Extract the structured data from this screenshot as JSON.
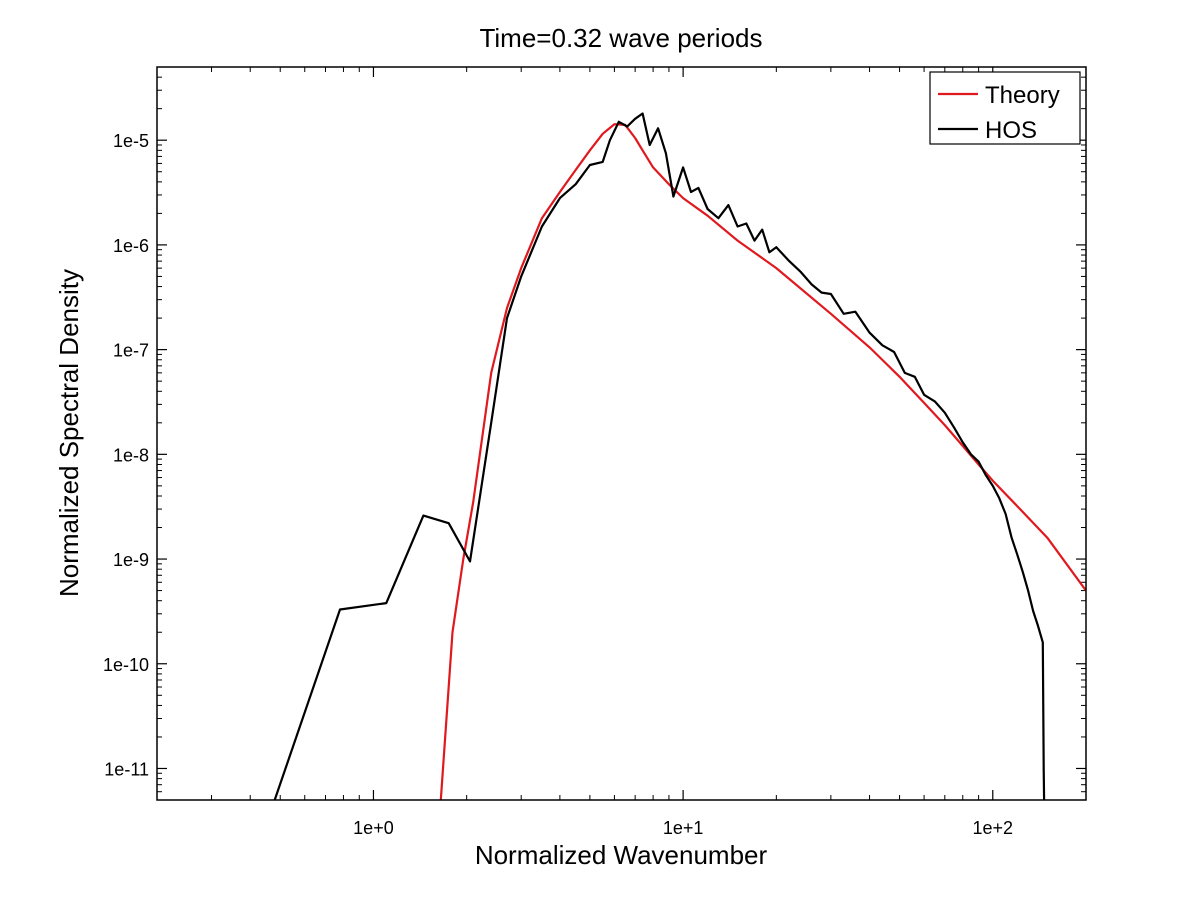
{
  "chart_data": {
    "type": "line",
    "title": "Time=0.32 wave periods",
    "xlabel": "Normalized Wavenumber",
    "ylabel": "Normalized Spectral Density",
    "xscale": "log",
    "yscale": "log",
    "xlim": [
      0.2,
      200
    ],
    "ylim": [
      5e-12,
      5e-05
    ],
    "x_ticks": [
      {
        "value": 1,
        "label": "1e+0"
      },
      {
        "value": 10,
        "label": "1e+1"
      },
      {
        "value": 100,
        "label": "1e+2"
      }
    ],
    "y_ticks": [
      {
        "value": 1e-05,
        "label": "1e-5"
      },
      {
        "value": 1e-06,
        "label": "1e-6"
      },
      {
        "value": 1e-07,
        "label": "1e-7"
      },
      {
        "value": 1e-08,
        "label": "1e-8"
      },
      {
        "value": 1e-09,
        "label": "1e-9"
      },
      {
        "value": 1e-10,
        "label": "1e-10"
      },
      {
        "value": 1e-11,
        "label": "1e-11"
      }
    ],
    "grid": false,
    "legend_position": "top-right",
    "series": [
      {
        "name": "Theory",
        "color": "#e0191f",
        "x": [
          1.65,
          1.8,
          1.95,
          2.1,
          2.4,
          2.7,
          3.0,
          3.5,
          4.0,
          4.5,
          5.0,
          5.5,
          6.0,
          6.5,
          7.0,
          7.5,
          8.0,
          9.0,
          10.0,
          12.0,
          15.0,
          20.0,
          30.0,
          40.0,
          50.0,
          60.0,
          70.0,
          80.0,
          90.0,
          100.0,
          120.0,
          150.0,
          200.0
        ],
        "y": [
          5e-12,
          2e-10,
          1e-09,
          3.5e-09,
          6e-08,
          2.5e-07,
          6e-07,
          1.8e-06,
          3.2e-06,
          5.2e-06,
          8e-06,
          1.15e-05,
          1.42e-05,
          1.4e-05,
          1.05e-05,
          7.5e-06,
          5.5e-06,
          3.8e-06,
          2.8e-06,
          1.9e-06,
          1.1e-06,
          6e-07,
          2.2e-07,
          1.05e-07,
          5.5e-08,
          3.1e-08,
          1.9e-08,
          1.2e-08,
          8e-09,
          5.6e-09,
          3.2e-09,
          1.6e-09,
          5e-10
        ]
      },
      {
        "name": "HOS",
        "color": "#000000",
        "x": [
          0.48,
          0.78,
          1.1,
          1.45,
          1.75,
          2.05,
          2.4,
          2.7,
          3.0,
          3.5,
          4.0,
          4.5,
          5.0,
          5.5,
          5.8,
          6.2,
          6.6,
          7.0,
          7.4,
          7.8,
          8.3,
          8.8,
          9.3,
          10.0,
          10.6,
          11.2,
          12.0,
          13.0,
          14.0,
          15.0,
          16.0,
          17.0,
          18.0,
          19.0,
          20.0,
          22.0,
          24.0,
          26.0,
          28.0,
          30.0,
          33.0,
          36.0,
          40.0,
          44.0,
          48.0,
          52.0,
          56.0,
          60.0,
          65.0,
          70.0,
          75.0,
          80.0,
          85.0,
          90.0,
          95.0,
          100.0,
          105.0,
          110.0,
          115.0,
          120.0,
          125.0,
          130.0,
          135.0,
          140.0,
          145.0,
          146.0,
          146.5
        ],
        "y": [
          5e-12,
          3.3e-10,
          3.8e-10,
          2.6e-09,
          2.2e-09,
          9.5e-10,
          2e-08,
          2e-07,
          5e-07,
          1.5e-06,
          2.8e-06,
          3.8e-06,
          5.8e-06,
          6.2e-06,
          1e-05,
          1.5e-05,
          1.35e-05,
          1.6e-05,
          1.8e-05,
          9e-06,
          1.3e-05,
          7.5e-06,
          2.9e-06,
          5.5e-06,
          3.2e-06,
          3.5e-06,
          2.2e-06,
          1.8e-06,
          2.4e-06,
          1.5e-06,
          1.6e-06,
          1.1e-06,
          1.4e-06,
          8.5e-07,
          9.5e-07,
          7e-07,
          5.5e-07,
          4.2e-07,
          3.5e-07,
          3.4e-07,
          2.2e-07,
          2.3e-07,
          1.45e-07,
          1.1e-07,
          9.5e-08,
          6e-08,
          5.5e-08,
          3.7e-08,
          3.2e-08,
          2.5e-08,
          1.8e-08,
          1.3e-08,
          1e-08,
          8.5e-09,
          6.3e-09,
          5e-09,
          3.8e-09,
          2.7e-09,
          1.6e-09,
          1.1e-09,
          7.5e-10,
          5e-10,
          3.2e-10,
          2.3e-10,
          1.6e-10,
          1e-11,
          5e-12
        ]
      }
    ]
  }
}
